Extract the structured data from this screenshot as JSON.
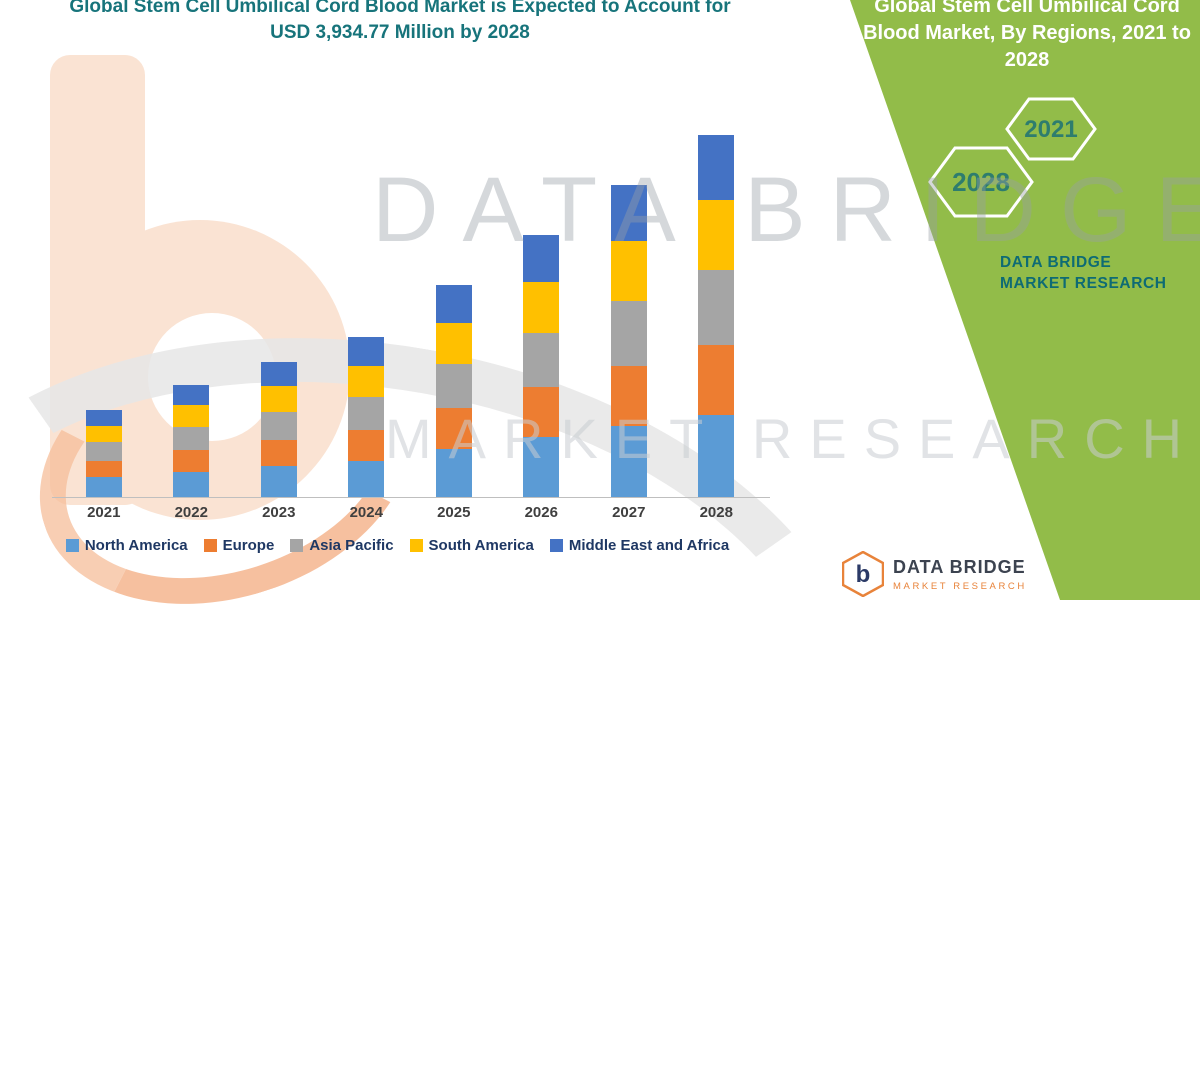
{
  "header": {
    "title": "Global Stem Cell Umbilical Cord Blood Market is Expected to Account for USD 3,934.77 Million by 2028"
  },
  "watermark": {
    "line1": "DATA BRIDGE",
    "line2": "MARKET RESEARCH"
  },
  "side_panel": {
    "title": "Global Stem Cell Umbilical Cord Blood Market, By Regions, 2021 to 2028",
    "hex_year_top": "2021",
    "hex_year_bottom": "2028",
    "brand": "DATA BRIDGE MARKET RESEARCH"
  },
  "footer_logo": {
    "glyph": "b",
    "name": "DATA BRIDGE",
    "sub": "MARKET RESEARCH"
  },
  "theme": {
    "headline_teal": "#17747B",
    "panel_green": "#92BC49",
    "brand_teal": "#0E6B74",
    "hex_year_teal": "#2E7D6E",
    "axis_label_color": "#3F3F3F",
    "legend_text_color": "#1F3864"
  },
  "chart_data": {
    "type": "bar",
    "stacked": true,
    "title": "Global Stem Cell Umbilical Cord Blood Market, By Regions, 2021 to 2028",
    "unit": "USD Million",
    "categories": [
      "2021",
      "2022",
      "2023",
      "2024",
      "2025",
      "2026",
      "2027",
      "2028"
    ],
    "series": [
      {
        "name": "North America",
        "color": "#5B9BD5",
        "values": [
          215,
          277,
          333,
          395,
          523,
          647,
          770,
          894.77
        ]
      },
      {
        "name": "Europe",
        "color": "#ED7D31",
        "values": [
          182,
          235,
          283,
          336,
          445,
          550,
          655,
          760
        ]
      },
      {
        "name": "Asia Pacific",
        "color": "#A5A5A5",
        "values": [
          196,
          252,
          304,
          360,
          477,
          590,
          702,
          815
        ]
      },
      {
        "name": "South America",
        "color": "#FFC000",
        "values": [
          182,
          235,
          283,
          336,
          445,
          550,
          655,
          760
        ]
      },
      {
        "name": "Middle East and Africa",
        "color": "#4472C4",
        "values": [
          170,
          219,
          265,
          313,
          415,
          512,
          610,
          705
        ]
      }
    ],
    "totals": [
      945,
      1218,
      1468,
      1740,
      2305,
      2849,
      3392,
      3934.77
    ],
    "ylim": [
      0,
      4000
    ],
    "grid": false,
    "legend_position": "bottom"
  }
}
